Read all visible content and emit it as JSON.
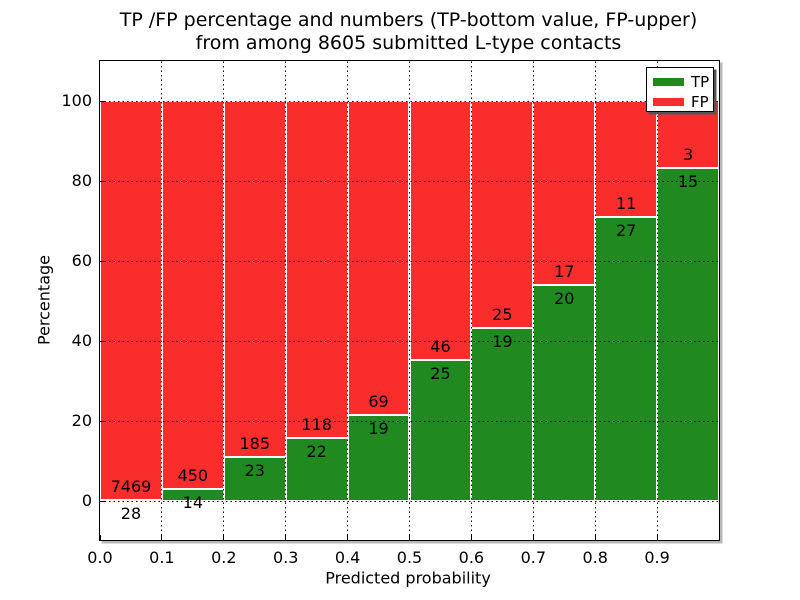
{
  "title": {
    "line1": "TP /FP percentage and numbers (TP-bottom value, FP-upper)",
    "line2": "from among 8605 submitted L-type contacts"
  },
  "axes": {
    "xlabel": "Predicted probability",
    "ylabel": "Percentage",
    "x_tick_labels": [
      "0.0",
      "0.1",
      "0.2",
      "0.3",
      "0.4",
      "0.5",
      "0.6",
      "0.7",
      "0.8",
      "0.9"
    ],
    "y_tick_labels": [
      "0",
      "20",
      "40",
      "60",
      "80",
      "100"
    ],
    "y_tick_values": [
      0,
      20,
      40,
      60,
      80,
      100
    ]
  },
  "legend": {
    "items": [
      {
        "label": "TP",
        "color": "#208a20"
      },
      {
        "label": "FP",
        "color": "#fa2d2d"
      }
    ]
  },
  "chart_data": {
    "type": "bar",
    "stacked": true,
    "normalized_to_percent": true,
    "title": "TP /FP percentage and numbers (TP-bottom value, FP-upper) from among 8605 submitted L-type contacts",
    "xlabel": "Predicted probability",
    "ylabel": "Percentage",
    "total_submitted_contacts": 8605,
    "bins": [
      "0.0-0.1",
      "0.1-0.2",
      "0.2-0.3",
      "0.3-0.4",
      "0.4-0.5",
      "0.5-0.6",
      "0.6-0.7",
      "0.7-0.8",
      "0.8-0.9",
      "0.9-1.0"
    ],
    "bin_start": 0.0,
    "bin_width": 0.1,
    "series": [
      {
        "name": "TP",
        "color": "#208a20",
        "counts": [
          28,
          14,
          23,
          22,
          19,
          25,
          19,
          20,
          27,
          15
        ]
      },
      {
        "name": "FP",
        "color": "#fa2d2d",
        "counts": [
          7469,
          450,
          185,
          118,
          69,
          46,
          25,
          17,
          11,
          3
        ]
      }
    ],
    "tp_percent": [
      0.37,
      3.02,
      11.06,
      15.71,
      21.59,
      35.21,
      43.18,
      54.05,
      71.05,
      83.33
    ],
    "fp_percent": [
      99.63,
      96.98,
      88.94,
      84.29,
      78.41,
      64.79,
      56.82,
      45.95,
      28.95,
      16.67
    ],
    "xlim": [
      0.0,
      1.0
    ],
    "ylim": [
      -10,
      110
    ],
    "grid": "dotted black, horizontal at 0/20/40/60/80/100 and vertical at each 0.1",
    "legend_position": "upper right"
  }
}
